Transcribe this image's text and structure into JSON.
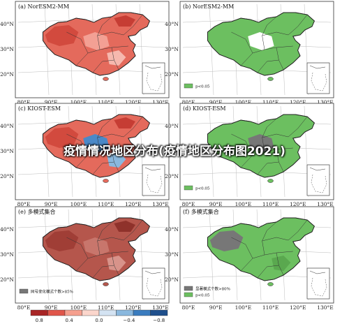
{
  "overlay_title": "疫情情况地区分布(疫情地区分布图2021)",
  "panels": [
    {
      "title": "(a) NorESM2-MM",
      "fill": "#e46a5c",
      "legend": []
    },
    {
      "title": "(b) NorESM2-MM",
      "fill": "#6cbf60",
      "legend": [
        {
          "swatch": "#6cbf60",
          "text": "p<0.05"
        }
      ]
    },
    {
      "title": "(c) KIOST-ESM",
      "fill": "#e46a5c",
      "legend": []
    },
    {
      "title": "(d) KIOST-ESM",
      "fill": "#6cbf60",
      "legend": [
        {
          "swatch": "#6cbf60",
          "text": "p<0.05"
        }
      ]
    },
    {
      "title": "(e) 多模式集合",
      "fill": "#b5564c",
      "legend": [
        {
          "swatch": "#777777",
          "text": "同号变化模式个数>85%"
        }
      ]
    },
    {
      "title": "(f) 多模式集合",
      "fill": "#6cbf60",
      "legend": [
        {
          "swatch": "#777777",
          "text": "显著模式个数>80%"
        },
        {
          "swatch": "#6cbf60",
          "text": "p<0.05"
        }
      ]
    }
  ],
  "axes": {
    "y_ticks": [
      "40°N",
      "30°N",
      "20°N"
    ],
    "x_ticks": [
      "80°E",
      "90°E",
      "100°E",
      "110°E",
      "120°E",
      "130°E"
    ]
  },
  "colorbar": {
    "colors": [
      "#a82525",
      "#e0564a",
      "#f5a08f",
      "#fbd6cc",
      "#d4e3f2",
      "#8ab8de",
      "#3a7cbf",
      "#1f4f8c"
    ],
    "labels": [
      "0.8",
      "0.4",
      "0.0",
      "−0.4",
      "−0.8"
    ]
  },
  "colors": {
    "red": "#e46a5c",
    "green": "#6cbf60",
    "blue": "#4a89c8",
    "gray": "#777777"
  }
}
